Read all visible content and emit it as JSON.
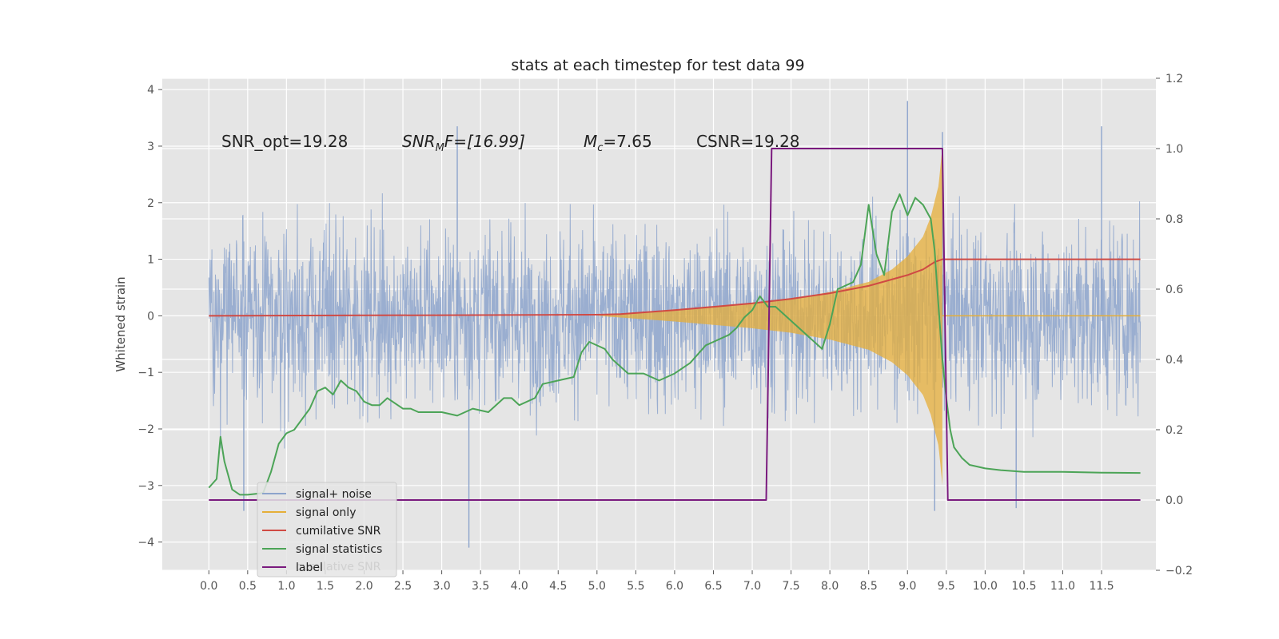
{
  "chart_data": {
    "type": "line",
    "title": "stats at each timestep for test data 99",
    "xlabel": "",
    "ylabel": "Whitened strain",
    "xlim": [
      -0.6,
      12.2
    ],
    "ylim": [
      -4.5,
      4.2
    ],
    "ylim_right": [
      -0.2,
      1.2
    ],
    "grid": true,
    "x_ticks": [
      "0.0",
      "0.5",
      "1.0",
      "1.5",
      "2.0",
      "2.5",
      "3.0",
      "3.5",
      "4.0",
      "4.5",
      "5.0",
      "5.5",
      "6.0",
      "6.5",
      "7.0",
      "7.5",
      "8.0",
      "8.5",
      "9.0",
      "9.5",
      "10.0",
      "10.5",
      "11.0",
      "11.5"
    ],
    "y_ticks": [
      "4",
      "3",
      "2",
      "1",
      "0",
      "−1",
      "−2",
      "−3",
      "−4"
    ],
    "y_ticks_right": [
      "1.2",
      "1.0",
      "0.8",
      "0.6",
      "0.4",
      "0.2",
      "0.0",
      "−0.2"
    ],
    "annotations": {
      "snr_opt": "SNR_opt=19.28",
      "snr_mf_base": "SNR",
      "snr_mf_sub": "M",
      "snr_mf_rest": "F=[16.99]",
      "mc_base": "M",
      "mc_sub": "c",
      "mc_rest": "=7.65",
      "csnr": "CSNR=19.28"
    },
    "legend": {
      "placement": "lower-left",
      "entries": [
        "signal+ noise",
        "signal only",
        "cumilative SNR",
        "signal statistics",
        "label"
      ],
      "ghost_text": "cumilative SNR"
    },
    "series": [
      {
        "name": "signal+ noise",
        "axis": "left",
        "color": "#8da4cc",
        "x_range": [
          0.0,
          12.0
        ],
        "typical_range": [
          -2.0,
          2.0
        ],
        "peaks_high": [
          {
            "x": 9.0,
            "y": 3.8
          },
          {
            "x": 11.5,
            "y": 3.35
          },
          {
            "x": 3.2,
            "y": 3.35
          },
          {
            "x": 9.45,
            "y": 3.25
          }
        ],
        "peaks_low": [
          {
            "x": 3.35,
            "y": -4.1
          },
          {
            "x": 9.35,
            "y": -3.45
          },
          {
            "x": 10.4,
            "y": -3.4
          },
          {
            "x": 0.45,
            "y": -3.45
          }
        ]
      },
      {
        "name": "signal only",
        "axis": "left",
        "color": "#e5ae38",
        "x": [
          5.0,
          6.0,
          7.0,
          7.5,
          8.0,
          8.5,
          8.8,
          9.0,
          9.2,
          9.3,
          9.4,
          9.45
        ],
        "amplitude": [
          0.0,
          0.1,
          0.22,
          0.3,
          0.42,
          0.6,
          0.82,
          1.05,
          1.4,
          1.75,
          2.3,
          3.0
        ]
      },
      {
        "name": "cumilative SNR",
        "axis": "left",
        "color": "#d04a44",
        "x": [
          0.0,
          5.0,
          5.3,
          6.0,
          6.5,
          7.0,
          7.5,
          8.0,
          8.5,
          9.0,
          9.2,
          9.35,
          9.45,
          12.0
        ],
        "values": [
          0.0,
          0.02,
          0.03,
          0.1,
          0.16,
          0.22,
          0.3,
          0.4,
          0.53,
          0.72,
          0.82,
          0.95,
          1.0,
          1.0
        ]
      },
      {
        "name": "signal statistics",
        "axis": "right",
        "color": "#4ca457",
        "x": [
          0.0,
          0.1,
          0.15,
          0.2,
          0.3,
          0.4,
          0.5,
          0.7,
          0.8,
          0.9,
          1.0,
          1.1,
          1.3,
          1.4,
          1.5,
          1.6,
          1.7,
          1.8,
          1.9,
          2.0,
          2.1,
          2.2,
          2.3,
          2.5,
          2.6,
          2.7,
          2.8,
          3.0,
          3.2,
          3.4,
          3.6,
          3.8,
          3.9,
          4.0,
          4.2,
          4.3,
          4.5,
          4.7,
          4.8,
          4.9,
          5.0,
          5.1,
          5.2,
          5.3,
          5.4,
          5.6,
          5.8,
          6.0,
          6.2,
          6.4,
          6.5,
          6.7,
          6.8,
          6.9,
          7.0,
          7.1,
          7.2,
          7.3,
          7.5,
          7.7,
          7.9,
          8.0,
          8.1,
          8.3,
          8.4,
          8.5,
          8.6,
          8.7,
          8.8,
          8.9,
          9.0,
          9.1,
          9.2,
          9.3,
          9.35,
          9.4,
          9.45,
          9.5,
          9.55,
          9.6,
          9.7,
          9.8,
          10.0,
          10.2,
          10.5,
          11.0,
          11.5,
          12.0
        ],
        "values": [
          0.035,
          0.06,
          0.18,
          0.11,
          0.03,
          0.015,
          0.015,
          0.02,
          0.08,
          0.16,
          0.19,
          0.2,
          0.26,
          0.31,
          0.32,
          0.3,
          0.34,
          0.32,
          0.31,
          0.28,
          0.27,
          0.27,
          0.29,
          0.26,
          0.26,
          0.25,
          0.25,
          0.25,
          0.24,
          0.26,
          0.25,
          0.29,
          0.29,
          0.27,
          0.29,
          0.33,
          0.34,
          0.35,
          0.42,
          0.45,
          0.44,
          0.43,
          0.4,
          0.38,
          0.36,
          0.36,
          0.34,
          0.36,
          0.39,
          0.44,
          0.45,
          0.47,
          0.49,
          0.52,
          0.54,
          0.58,
          0.55,
          0.55,
          0.51,
          0.47,
          0.43,
          0.5,
          0.6,
          0.62,
          0.67,
          0.84,
          0.7,
          0.64,
          0.82,
          0.87,
          0.81,
          0.86,
          0.84,
          0.8,
          0.71,
          0.55,
          0.4,
          0.29,
          0.2,
          0.15,
          0.12,
          0.1,
          0.09,
          0.085,
          0.08,
          0.08,
          0.078,
          0.077
        ]
      },
      {
        "name": "label",
        "axis": "right",
        "color": "#7a1a7e",
        "x": [
          0.0,
          7.18,
          7.25,
          9.45,
          9.52,
          12.0
        ],
        "values": [
          0.0,
          0.0,
          1.0,
          1.0,
          0.0,
          0.0
        ]
      }
    ]
  }
}
